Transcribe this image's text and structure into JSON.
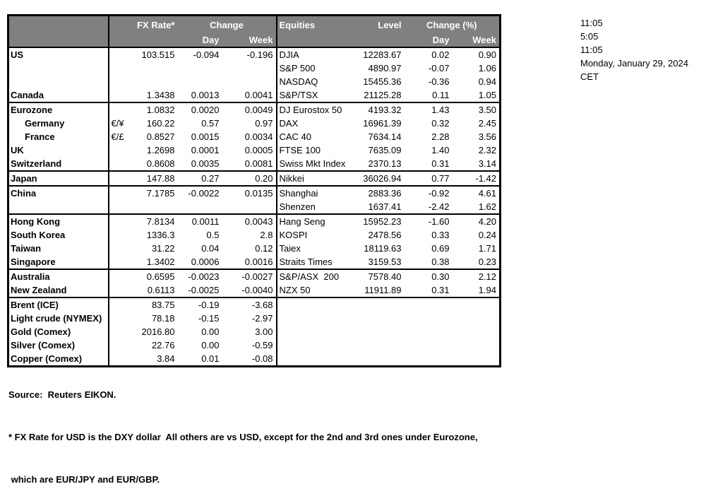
{
  "colors": {
    "header_bg": "#808080",
    "header_text": "#ffffff",
    "border": "#000000",
    "page_bg": "#ffffff"
  },
  "header": {
    "fx_rate": "FX Rate*",
    "change": "Change",
    "day": "Day",
    "week": "Week",
    "equities": "Equities",
    "level": "Level",
    "change_pct": "Change (%)"
  },
  "timestamps": [
    "11:05",
    "5:05",
    "11:05",
    "Monday, January 29, 2024",
    "CET"
  ],
  "footer": {
    "source": "Source:  Reuters EIKON.",
    "note1": "* FX Rate for USD is the DXY dollar  All others are vs USD, except for the 2nd and 3rd ones under Eurozone,",
    "note2": " which are EUR/JPY and EUR/GBP."
  },
  "rows": [
    {
      "label": "US",
      "indent": false,
      "pair": "",
      "fx": "103.515",
      "day": "-0.094",
      "week": "-0.196",
      "eq": "DJIA",
      "level": "12283.67",
      "eq_day": "0.02",
      "eq_week": "0.90",
      "group_end": false
    },
    {
      "label": "",
      "indent": false,
      "pair": "",
      "fx": "",
      "day": "",
      "week": "",
      "eq": "S&P 500",
      "level": "4890.97",
      "eq_day": "-0.07",
      "eq_week": "1.06",
      "group_end": false
    },
    {
      "label": "",
      "indent": false,
      "pair": "",
      "fx": "",
      "day": "",
      "week": "",
      "eq": "NASDAQ",
      "level": "15455.36",
      "eq_day": "-0.36",
      "eq_week": "0.94",
      "group_end": false
    },
    {
      "label": "Canada",
      "indent": false,
      "pair": "",
      "fx": "1.3438",
      "day": "0.0013",
      "week": "0.0041",
      "eq": "S&P/TSX",
      "level": "21125.28",
      "eq_day": "0.11",
      "eq_week": "1.05",
      "group_end": true
    },
    {
      "label": "Eurozone",
      "indent": false,
      "pair": "",
      "fx": "1.0832",
      "day": "0.0020",
      "week": "0.0049",
      "eq": "DJ Eurostox 50",
      "level": "4193.32",
      "eq_day": "1.43",
      "eq_week": "3.50",
      "group_end": false
    },
    {
      "label": "Germany",
      "indent": true,
      "pair": "€/¥",
      "fx": "160.22",
      "day": "0.57",
      "week": "0.97",
      "eq": "DAX",
      "level": "16961.39",
      "eq_day": "0.32",
      "eq_week": "2.45",
      "group_end": false
    },
    {
      "label": "France",
      "indent": true,
      "pair": "€/£",
      "fx": "0.8527",
      "day": "0.0015",
      "week": "0.0034",
      "eq": "CAC 40",
      "level": "7634.14",
      "eq_day": "2.28",
      "eq_week": "3.56",
      "group_end": false
    },
    {
      "label": "UK",
      "indent": false,
      "pair": "",
      "fx": "1.2698",
      "day": "0.0001",
      "week": "0.0005",
      "eq": "FTSE 100",
      "level": "7635.09",
      "eq_day": "1.40",
      "eq_week": "2.32",
      "group_end": false
    },
    {
      "label": "Switzerland",
      "indent": false,
      "pair": "",
      "fx": "0.8608",
      "day": "0.0035",
      "week": "0.0081",
      "eq": "Swiss Mkt Index",
      "level": "2370.13",
      "eq_day": "0.31",
      "eq_week": "3.14",
      "group_end": true
    },
    {
      "label": "Japan",
      "indent": false,
      "pair": "",
      "fx": "147.88",
      "day": "0.27",
      "week": "0.20",
      "eq": "Nikkei",
      "level": "36026.94",
      "eq_day": "0.77",
      "eq_week": "-1.42",
      "group_end": true
    },
    {
      "label": "China",
      "indent": false,
      "pair": "",
      "fx": "7.1785",
      "day": "-0.0022",
      "week": "0.0135",
      "eq": "Shanghai",
      "level": "2883.36",
      "eq_day": "-0.92",
      "eq_week": "4.61",
      "group_end": false
    },
    {
      "label": "",
      "indent": false,
      "pair": "",
      "fx": "",
      "day": "",
      "week": "",
      "eq": "Shenzen",
      "level": "1637.41",
      "eq_day": "-2.42",
      "eq_week": "1.62",
      "group_end": true
    },
    {
      "label": "Hong Kong",
      "indent": false,
      "pair": "",
      "fx": "7.8134",
      "day": "0.0011",
      "week": "0.0043",
      "eq": "Hang Seng",
      "level": "15952.23",
      "eq_day": "-1.60",
      "eq_week": "4.20",
      "group_end": false
    },
    {
      "label": "South Korea",
      "indent": false,
      "pair": "",
      "fx": "1336.3",
      "day": "0.5",
      "week": "2.8",
      "eq": "KOSPI",
      "level": "2478.56",
      "eq_day": "0.33",
      "eq_week": "0.24",
      "group_end": false
    },
    {
      "label": "Taiwan",
      "indent": false,
      "pair": "",
      "fx": "31.22",
      "day": "0.04",
      "week": "0.12",
      "eq": "Taiex",
      "level": "18119.63",
      "eq_day": "0.69",
      "eq_week": "1.71",
      "group_end": false
    },
    {
      "label": "Singapore",
      "indent": false,
      "pair": "",
      "fx": "1.3402",
      "day": "0.0006",
      "week": "0.0016",
      "eq": "Straits Times",
      "level": "3159.53",
      "eq_day": "0.38",
      "eq_week": "0.23",
      "group_end": true
    },
    {
      "label": "Australia",
      "indent": false,
      "pair": "",
      "fx": "0.6595",
      "day": "-0.0023",
      "week": "-0.0027",
      "eq": "S&P/ASX  200",
      "level": "7578.40",
      "eq_day": "0.30",
      "eq_week": "2.12",
      "group_end": false
    },
    {
      "label": "New Zealand",
      "indent": false,
      "pair": "",
      "fx": "0.6113",
      "day": "-0.0025",
      "week": "-0.0040",
      "eq": "NZX 50",
      "level": "11911.89",
      "eq_day": "0.31",
      "eq_week": "1.94",
      "group_end": true
    },
    {
      "label": "Brent (ICE)",
      "indent": false,
      "pair": "",
      "fx": "83.75",
      "day": "-0.19",
      "week": "-3.68",
      "eq": "",
      "level": "",
      "eq_day": "",
      "eq_week": "",
      "group_end": false
    },
    {
      "label": "Light crude (NYMEX)",
      "indent": false,
      "pair": "",
      "fx": "78.18",
      "day": "-0.15",
      "week": "-2.97",
      "eq": "",
      "level": "",
      "eq_day": "",
      "eq_week": "",
      "group_end": false
    },
    {
      "label": "Gold (Comex)",
      "indent": false,
      "pair": "",
      "fx": "2016.80",
      "day": "0.00",
      "week": "3.00",
      "eq": "",
      "level": "",
      "eq_day": "",
      "eq_week": "",
      "group_end": false
    },
    {
      "label": "Silver (Comex)",
      "indent": false,
      "pair": "",
      "fx": "22.76",
      "day": "0.00",
      "week": "-0.59",
      "eq": "",
      "level": "",
      "eq_day": "",
      "eq_week": "",
      "group_end": false
    },
    {
      "label": "Copper (Comex)",
      "indent": false,
      "pair": "",
      "fx": "3.84",
      "day": "0.01",
      "week": "-0.08",
      "eq": "",
      "level": "",
      "eq_day": "",
      "eq_week": "",
      "group_end": false
    }
  ]
}
